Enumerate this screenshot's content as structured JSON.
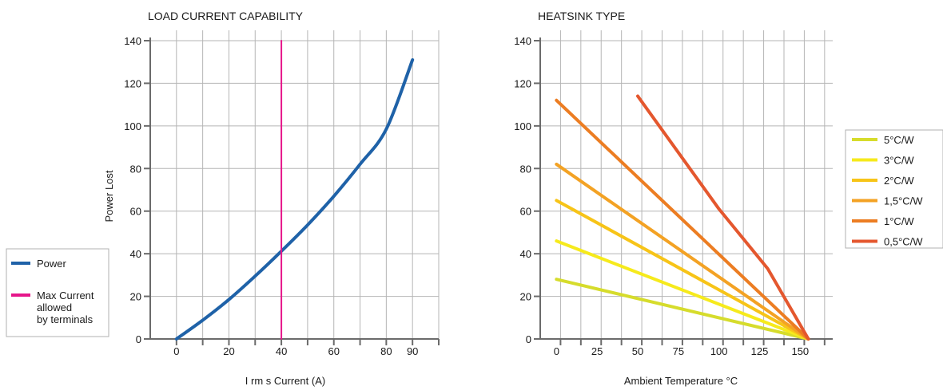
{
  "chart_data": [
    {
      "type": "line",
      "title": "LOAD CURRENT CAPABILITY",
      "xlabel": "I rm s Current (A)",
      "ylabel": "Power Lost",
      "xlim": [
        -10,
        100
      ],
      "ylim": [
        0,
        140
      ],
      "x_ticks": [
        0,
        20,
        40,
        60,
        80,
        90
      ],
      "x_tick_labels": [
        "0",
        "20",
        "40",
        "60",
        "80",
        "90"
      ],
      "y_ticks": [
        0,
        20,
        40,
        60,
        80,
        100,
        120,
        140
      ],
      "y_tick_labels": [
        "0",
        "20",
        "40",
        "60",
        "80",
        "100",
        "120",
        "140"
      ],
      "grid": true,
      "legend_position": "left",
      "series": [
        {
          "name": "Power",
          "color": "#1f62a8",
          "x": [
            0,
            10,
            20,
            30,
            40,
            50,
            60,
            70,
            80,
            90
          ],
          "y": [
            0,
            8.8,
            18.5,
            29.5,
            41.2,
            53.5,
            67,
            82,
            98.5,
            131
          ]
        },
        {
          "name": "Max Current allowed by terminals",
          "color": "#e6168a",
          "x": [
            40,
            40
          ],
          "y": [
            0,
            140
          ]
        }
      ],
      "legend": {
        "items": [
          {
            "label": "Power",
            "color": "#1f62a8"
          },
          {
            "label_lines": [
              "Max Current",
              "allowed",
              "by terminals"
            ],
            "color": "#e6168a"
          }
        ]
      }
    },
    {
      "type": "line",
      "title": "HEATSINK TYPE",
      "xlabel": "Ambient Temperature °C",
      "ylabel": "",
      "xlim": [
        -10,
        170
      ],
      "ylim": [
        0,
        140
      ],
      "x_ticks": [
        0,
        25,
        50,
        75,
        100,
        125,
        150
      ],
      "x_tick_labels": [
        "0",
        "25",
        "50",
        "75",
        "100",
        "125",
        "150"
      ],
      "y_ticks": [
        0,
        20,
        40,
        60,
        80,
        100,
        120,
        140
      ],
      "y_tick_labels": [
        "0",
        "20",
        "40",
        "60",
        "80",
        "100",
        "120",
        "140"
      ],
      "grid": true,
      "legend_position": "right",
      "series": [
        {
          "name": "5°C/W",
          "color": "#d6dc2c",
          "x": [
            0,
            155
          ],
          "y": [
            28,
            0
          ]
        },
        {
          "name": "3°C/W",
          "color": "#f6ea1c",
          "x": [
            0,
            155
          ],
          "y": [
            46,
            0
          ]
        },
        {
          "name": "2°C/W",
          "color": "#f7c418",
          "x": [
            0,
            155
          ],
          "y": [
            65,
            0
          ]
        },
        {
          "name": "1,5°C/W",
          "color": "#f3a224",
          "x": [
            0,
            155
          ],
          "y": [
            82,
            0
          ]
        },
        {
          "name": "1°C/W",
          "color": "#ec7d22",
          "x": [
            0,
            155
          ],
          "y": [
            112,
            0
          ]
        },
        {
          "name": "0,5°C/W",
          "color": "#e4572e",
          "x": [
            50,
            100,
            130,
            155
          ],
          "y": [
            114,
            61,
            33,
            0
          ]
        }
      ]
    }
  ]
}
